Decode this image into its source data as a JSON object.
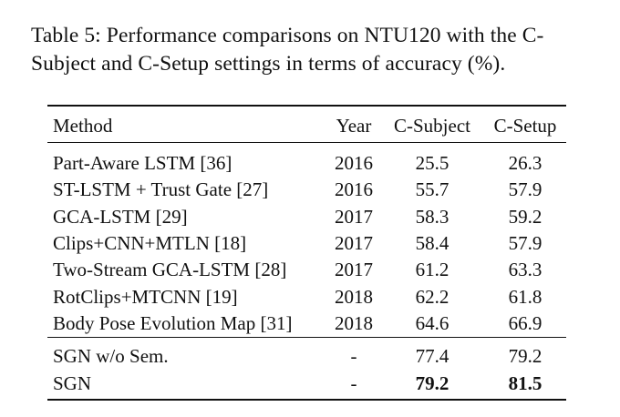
{
  "caption": {
    "line1": "Table 5: Performance comparisons on NTU120 with the C-",
    "line2": "Subject and C-Setup settings in terms of accuracy (%)."
  },
  "table": {
    "headers": {
      "method": "Method",
      "year": "Year",
      "c_subject": "C-Subject",
      "c_setup": "C-Setup"
    },
    "rows": [
      {
        "method": "Part-Aware LSTM [36]",
        "year": "2016",
        "c_subject": "25.5",
        "c_setup": "26.3"
      },
      {
        "method": "ST-LSTM + Trust Gate [27]",
        "year": "2016",
        "c_subject": "55.7",
        "c_setup": "57.9"
      },
      {
        "method": "GCA-LSTM [29]",
        "year": "2017",
        "c_subject": "58.3",
        "c_setup": "59.2"
      },
      {
        "method": "Clips+CNN+MTLN [18]",
        "year": "2017",
        "c_subject": "58.4",
        "c_setup": "57.9"
      },
      {
        "method": "Two-Stream GCA-LSTM [28]",
        "year": "2017",
        "c_subject": "61.2",
        "c_setup": "63.3"
      },
      {
        "method": "RotClips+MTCNN [19]",
        "year": "2018",
        "c_subject": "62.2",
        "c_setup": "61.8"
      },
      {
        "method": "Body Pose Evolution Map [31]",
        "year": "2018",
        "c_subject": "64.6",
        "c_setup": "66.9"
      }
    ],
    "ours": [
      {
        "method": "SGN w/o Sem.",
        "year": "-",
        "c_subject": "77.4",
        "c_setup": "79.2",
        "bold": false
      },
      {
        "method": "SGN",
        "year": "-",
        "c_subject": "79.2",
        "c_setup": "81.5",
        "bold": true
      }
    ]
  }
}
